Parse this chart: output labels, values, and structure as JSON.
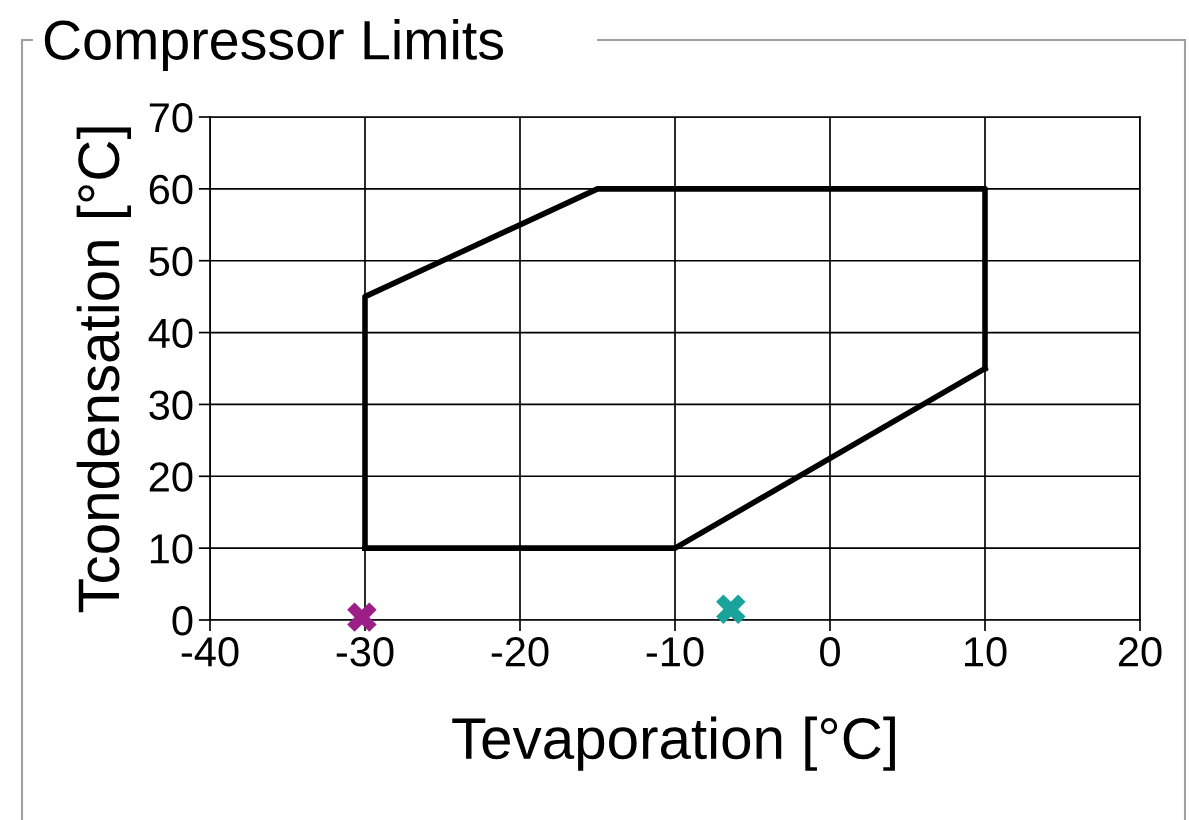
{
  "chart_data": {
    "type": "line",
    "title": "Compressor Limits",
    "xlabel": "Tevaporation [°C]",
    "ylabel": "Tcondensation [°C]",
    "xlim": [
      -40,
      20
    ],
    "xticks": [
      -40,
      -30,
      -20,
      -10,
      0,
      10,
      20
    ],
    "ylim": [
      0,
      70
    ],
    "yticks": [
      0,
      10,
      20,
      30,
      40,
      50,
      60,
      70
    ],
    "grid": true,
    "series": [
      {
        "color": "#000000",
        "x": [
          -30,
          -30,
          -15,
          10,
          10
        ],
        "values": [
          10,
          45,
          60,
          60,
          35
        ],
        "marker": "none",
        "line_style": "solid"
      },
      {
        "color": "#000000",
        "x": [
          -30,
          -10,
          10
        ],
        "values": [
          10,
          10,
          35
        ],
        "marker": "none",
        "line_style": "solid"
      },
      {
        "type": "scatter",
        "color": "#9b1f86",
        "x": [
          -30.2
        ],
        "values": [
          0.4
        ],
        "marker": "cross"
      },
      {
        "type": "scatter",
        "color": "#1aa39a",
        "x": [
          -6.4
        ],
        "values": [
          1.5
        ],
        "marker": "cross"
      }
    ]
  }
}
